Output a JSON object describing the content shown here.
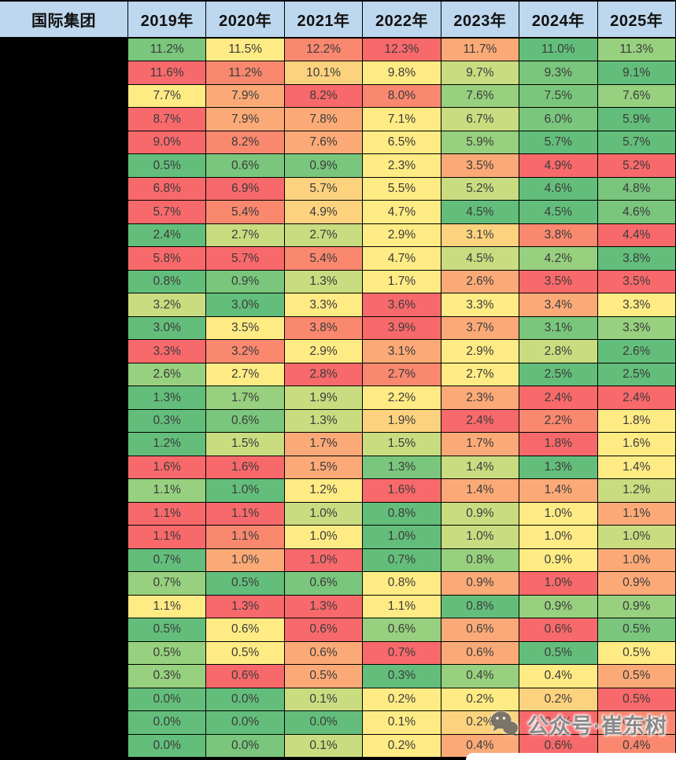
{
  "table": {
    "corner_label": "国际集团",
    "columns": [
      "2019年",
      "2020年",
      "2021年",
      "2022年",
      "2023年",
      "2024年",
      "2025年"
    ],
    "header_bg": "#BDD7EE",
    "grid_color": "#000000",
    "cell_text_color": "#3B3B3B",
    "row_label_redacted_bg": "#000000",
    "value_format": {
      "decimals": 1,
      "suffix": "%"
    },
    "heatmap_palette": [
      "#63BE7B",
      "#79C67C",
      "#97D07E",
      "#C9DC80",
      "#FFEB84",
      "#FDD27E",
      "#FBAA77",
      "#F9886F",
      "#F8696B"
    ],
    "cell_color_levels": [
      [
        1,
        4,
        7,
        8,
        6,
        0,
        2
      ],
      [
        8,
        7,
        5,
        4,
        3,
        1,
        0
      ],
      [
        4,
        6,
        8,
        7,
        2,
        1,
        2
      ],
      [
        8,
        6,
        6,
        4,
        3,
        1,
        0
      ],
      [
        8,
        7,
        6,
        4,
        2,
        0,
        0
      ],
      [
        0,
        1,
        1,
        4,
        6,
        8,
        8
      ],
      [
        8,
        8,
        5,
        4,
        3,
        0,
        1
      ],
      [
        8,
        7,
        5,
        4,
        0,
        0,
        1
      ],
      [
        0,
        3,
        3,
        4,
        5,
        7,
        8
      ],
      [
        8,
        8,
        7,
        4,
        3,
        2,
        0
      ],
      [
        0,
        1,
        3,
        4,
        6,
        8,
        8
      ],
      [
        3,
        0,
        4,
        8,
        4,
        6,
        4
      ],
      [
        0,
        4,
        7,
        8,
        6,
        1,
        2
      ],
      [
        8,
        7,
        4,
        6,
        4,
        3,
        0
      ],
      [
        2,
        4,
        8,
        7,
        4,
        0,
        0
      ],
      [
        0,
        2,
        3,
        4,
        6,
        8,
        8
      ],
      [
        0,
        1,
        3,
        5,
        8,
        7,
        4
      ],
      [
        0,
        3,
        6,
        3,
        6,
        8,
        4
      ],
      [
        8,
        8,
        6,
        1,
        3,
        0,
        4
      ],
      [
        2,
        0,
        4,
        8,
        6,
        6,
        3
      ],
      [
        8,
        8,
        3,
        0,
        3,
        4,
        6
      ],
      [
        8,
        7,
        4,
        0,
        3,
        4,
        3
      ],
      [
        0,
        6,
        8,
        0,
        2,
        4,
        6
      ],
      [
        2,
        0,
        1,
        4,
        6,
        8,
        6
      ],
      [
        4,
        8,
        8,
        4,
        0,
        2,
        2
      ],
      [
        0,
        4,
        8,
        2,
        6,
        8,
        1
      ],
      [
        2,
        4,
        6,
        8,
        6,
        0,
        4
      ],
      [
        2,
        8,
        6,
        0,
        2,
        4,
        6
      ],
      [
        0,
        0,
        3,
        4,
        4,
        5,
        8
      ],
      [
        0,
        0,
        0,
        4,
        5,
        8,
        7
      ],
      [
        0,
        1,
        3,
        4,
        6,
        8,
        7
      ]
    ]
  },
  "chart_data": {
    "type": "heatmap",
    "title": "国际集团",
    "categories": [
      "2019年",
      "2020年",
      "2021年",
      "2022年",
      "2023年",
      "2024年",
      "2025年"
    ],
    "row_labels_hidden": true,
    "values_percent": [
      [
        11.2,
        11.5,
        12.2,
        12.3,
        11.7,
        11.0,
        11.3
      ],
      [
        11.6,
        11.2,
        10.1,
        9.8,
        9.7,
        9.3,
        9.1
      ],
      [
        7.7,
        7.9,
        8.2,
        8.0,
        7.6,
        7.5,
        7.6
      ],
      [
        8.7,
        7.9,
        7.8,
        7.1,
        6.7,
        6.0,
        5.9
      ],
      [
        9.0,
        8.2,
        7.6,
        6.5,
        5.9,
        5.7,
        5.7
      ],
      [
        0.5,
        0.6,
        0.9,
        2.3,
        3.5,
        4.9,
        5.2
      ],
      [
        6.8,
        6.9,
        5.7,
        5.5,
        5.2,
        4.6,
        4.8
      ],
      [
        5.7,
        5.4,
        4.9,
        4.7,
        4.5,
        4.5,
        4.6
      ],
      [
        2.4,
        2.7,
        2.7,
        2.9,
        3.1,
        3.8,
        4.4
      ],
      [
        5.8,
        5.7,
        5.4,
        4.7,
        4.5,
        4.2,
        3.8
      ],
      [
        0.8,
        0.9,
        1.3,
        1.7,
        2.6,
        3.5,
        3.5
      ],
      [
        3.2,
        3.0,
        3.3,
        3.6,
        3.3,
        3.4,
        3.3
      ],
      [
        3.0,
        3.5,
        3.8,
        3.9,
        3.7,
        3.1,
        3.3
      ],
      [
        3.3,
        3.2,
        2.9,
        3.1,
        2.9,
        2.8,
        2.6
      ],
      [
        2.6,
        2.7,
        2.8,
        2.7,
        2.7,
        2.5,
        2.5
      ],
      [
        1.3,
        1.7,
        1.9,
        2.2,
        2.3,
        2.4,
        2.4
      ],
      [
        0.3,
        0.6,
        1.3,
        1.9,
        2.4,
        2.2,
        1.8
      ],
      [
        1.2,
        1.5,
        1.7,
        1.5,
        1.7,
        1.8,
        1.6
      ],
      [
        1.6,
        1.6,
        1.5,
        1.3,
        1.4,
        1.3,
        1.4
      ],
      [
        1.1,
        1.0,
        1.2,
        1.6,
        1.4,
        1.4,
        1.2
      ],
      [
        1.1,
        1.1,
        1.0,
        0.8,
        0.9,
        1.0,
        1.1
      ],
      [
        1.1,
        1.1,
        1.0,
        1.0,
        1.0,
        1.0,
        1.0
      ],
      [
        0.7,
        1.0,
        1.0,
        0.7,
        0.8,
        0.9,
        1.0
      ],
      [
        0.7,
        0.5,
        0.6,
        0.8,
        0.9,
        1.0,
        0.9
      ],
      [
        1.1,
        1.3,
        1.3,
        1.1,
        0.8,
        0.9,
        0.9
      ],
      [
        0.5,
        0.6,
        0.6,
        0.6,
        0.6,
        0.6,
        0.5
      ],
      [
        0.5,
        0.5,
        0.6,
        0.7,
        0.6,
        0.5,
        0.5
      ],
      [
        0.3,
        0.6,
        0.5,
        0.3,
        0.4,
        0.4,
        0.5
      ],
      [
        0.0,
        0.0,
        0.1,
        0.2,
        0.2,
        0.2,
        0.5
      ],
      [
        0.0,
        0.0,
        0.0,
        0.1,
        0.2,
        0.5,
        0.5
      ],
      [
        0.0,
        0.0,
        0.1,
        0.2,
        0.4,
        0.6,
        0.4
      ]
    ],
    "color_scale": {
      "low": "#63BE7B",
      "mid": "#FFEB84",
      "high": "#F8696B",
      "note": "per-row 3-color scale, green=low red=high"
    },
    "legend_position": "none",
    "grid": true
  },
  "watermark": {
    "text": "公众号·崔东树",
    "icon": "wechat-icon",
    "color": "#7A7A7A"
  }
}
